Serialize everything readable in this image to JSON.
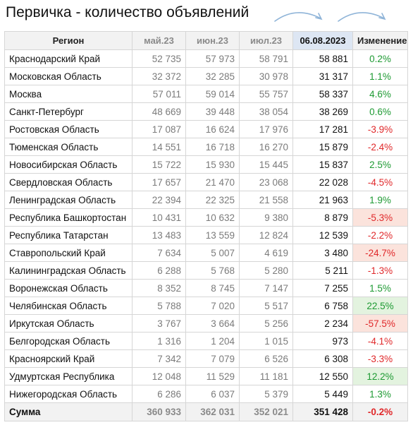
{
  "title": "Первичка - количество объявлений",
  "colors": {
    "positive": "#1e9a33",
    "negative": "#e0282a",
    "current_header_bg": "#dde6f3",
    "highlight_red_bg": "#fbe3dc",
    "highlight_green_bg": "#e3f3df"
  },
  "headers": [
    "Регион",
    "май.23",
    "июн.23",
    "июл.23",
    "06.08.2023",
    "Изменение"
  ],
  "rows": [
    {
      "region": "Краснодарский Край",
      "may": "52 735",
      "jun": "57 973",
      "jul": "58 791",
      "cur": "58 881",
      "change": "0.2%",
      "sign": "pos",
      "hl": ""
    },
    {
      "region": "Московская Область",
      "may": "32 372",
      "jun": "32 285",
      "jul": "30 978",
      "cur": "31 317",
      "change": "1.1%",
      "sign": "pos",
      "hl": ""
    },
    {
      "region": "Москва",
      "may": "57 011",
      "jun": "59 014",
      "jul": "55 757",
      "cur": "58 337",
      "change": "4.6%",
      "sign": "pos",
      "hl": ""
    },
    {
      "region": "Санкт-Петербург",
      "may": "48 669",
      "jun": "39 448",
      "jul": "38 054",
      "cur": "38 269",
      "change": "0.6%",
      "sign": "pos",
      "hl": ""
    },
    {
      "region": "Ростовская Область",
      "may": "17 087",
      "jun": "16 624",
      "jul": "17 976",
      "cur": "17 281",
      "change": "-3.9%",
      "sign": "neg",
      "hl": ""
    },
    {
      "region": "Тюменская Область",
      "may": "14 551",
      "jun": "16 718",
      "jul": "16 270",
      "cur": "15 879",
      "change": "-2.4%",
      "sign": "neg",
      "hl": ""
    },
    {
      "region": "Новосибирская Область",
      "may": "15 722",
      "jun": "15 930",
      "jul": "15 445",
      "cur": "15 837",
      "change": "2.5%",
      "sign": "pos",
      "hl": ""
    },
    {
      "region": "Свердловская Область",
      "may": "17 657",
      "jun": "21 470",
      "jul": "23 068",
      "cur": "22 028",
      "change": "-4.5%",
      "sign": "neg",
      "hl": ""
    },
    {
      "region": "Ленинградская Область",
      "may": "22 394",
      "jun": "22 325",
      "jul": "21 558",
      "cur": "21 963",
      "change": "1.9%",
      "sign": "pos",
      "hl": ""
    },
    {
      "region": "Республика Башкортостан",
      "may": "10 431",
      "jun": "10 632",
      "jul": "9 380",
      "cur": "8 879",
      "change": "-5.3%",
      "sign": "neg",
      "hl": "red"
    },
    {
      "region": "Республика Татарстан",
      "may": "13 483",
      "jun": "13 559",
      "jul": "12 824",
      "cur": "12 539",
      "change": "-2.2%",
      "sign": "neg",
      "hl": ""
    },
    {
      "region": "Ставропольский Край",
      "may": "7 634",
      "jun": "5 007",
      "jul": "4 619",
      "cur": "3 480",
      "change": "-24.7%",
      "sign": "neg",
      "hl": "red"
    },
    {
      "region": "Калининградская Область",
      "may": "6 288",
      "jun": "5 768",
      "jul": "5 280",
      "cur": "5 211",
      "change": "-1.3%",
      "sign": "neg",
      "hl": ""
    },
    {
      "region": "Воронежская Область",
      "may": "8 352",
      "jun": "8 745",
      "jul": "7 147",
      "cur": "7 255",
      "change": "1.5%",
      "sign": "pos",
      "hl": ""
    },
    {
      "region": "Челябинская Область",
      "may": "5 788",
      "jun": "7 020",
      "jul": "5 517",
      "cur": "6 758",
      "change": "22.5%",
      "sign": "pos",
      "hl": "green"
    },
    {
      "region": "Иркутская Область",
      "may": "3 767",
      "jun": "3 664",
      "jul": "5 256",
      "cur": "2 234",
      "change": "-57.5%",
      "sign": "neg",
      "hl": "red"
    },
    {
      "region": "Белгородская Область",
      "may": "1 316",
      "jun": "1 204",
      "jul": "1 015",
      "cur": "973",
      "change": "-4.1%",
      "sign": "neg",
      "hl": ""
    },
    {
      "region": "Красноярский Край",
      "may": "7 342",
      "jun": "7 079",
      "jul": "6 526",
      "cur": "6 308",
      "change": "-3.3%",
      "sign": "neg",
      "hl": ""
    },
    {
      "region": "Удмуртская Республика",
      "may": "12 048",
      "jun": "11 529",
      "jul": "11 181",
      "cur": "12 550",
      "change": "12.2%",
      "sign": "pos",
      "hl": "green"
    },
    {
      "region": "Нижегородская Область",
      "may": "6 286",
      "jun": "6 037",
      "jul": "5 379",
      "cur": "5 449",
      "change": "1.3%",
      "sign": "pos",
      "hl": ""
    }
  ],
  "total": {
    "region": "Сумма",
    "may": "360 933",
    "jun": "362 031",
    "jul": "352 021",
    "cur": "351 428",
    "change": "-0.2%",
    "sign": "neg"
  }
}
